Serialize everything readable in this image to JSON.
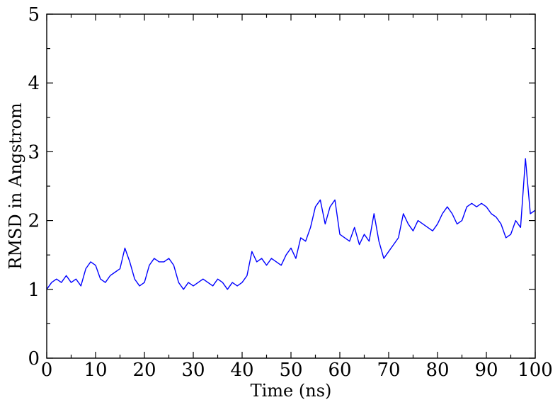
{
  "chart_data": {
    "type": "line",
    "title": "",
    "xlabel": "Time (ns)",
    "ylabel": "RMSD in Angstrom",
    "xlim": [
      0,
      100
    ],
    "ylim": [
      0,
      5
    ],
    "x_major_ticks": [
      0,
      10,
      20,
      30,
      40,
      50,
      60,
      70,
      80,
      90,
      100
    ],
    "x_tick_labels": [
      "0",
      "10",
      "20",
      "30",
      "40",
      "50",
      "60",
      "70",
      "80",
      "90",
      "100"
    ],
    "y_major_ticks": [
      0,
      1,
      2,
      3,
      4,
      5
    ],
    "y_tick_labels": [
      "0",
      "1",
      "2",
      "3",
      "4",
      "5"
    ],
    "grid": false,
    "legend": "none",
    "series": [
      {
        "color": "#0000ff",
        "x": [
          0,
          1,
          2,
          3,
          4,
          5,
          6,
          7,
          8,
          9,
          10,
          11,
          12,
          13,
          14,
          15,
          16,
          17,
          18,
          19,
          20,
          21,
          22,
          23,
          24,
          25,
          26,
          27,
          28,
          29,
          30,
          31,
          32,
          33,
          34,
          35,
          36,
          37,
          38,
          39,
          40,
          41,
          42,
          43,
          44,
          45,
          46,
          47,
          48,
          49,
          50,
          51,
          52,
          53,
          54,
          55,
          56,
          57,
          58,
          59,
          60,
          61,
          62,
          63,
          64,
          65,
          66,
          67,
          68,
          69,
          70,
          71,
          72,
          73,
          74,
          75,
          76,
          77,
          78,
          79,
          80,
          81,
          82,
          83,
          84,
          85,
          86,
          87,
          88,
          89,
          90,
          91,
          92,
          93,
          94,
          95,
          96,
          97,
          98,
          99,
          100
        ],
        "y": [
          1.0,
          1.1,
          1.15,
          1.1,
          1.2,
          1.1,
          1.15,
          1.05,
          1.3,
          1.4,
          1.35,
          1.15,
          1.1,
          1.2,
          1.25,
          1.3,
          1.6,
          1.4,
          1.15,
          1.05,
          1.1,
          1.35,
          1.45,
          1.4,
          1.4,
          1.45,
          1.35,
          1.1,
          1.0,
          1.1,
          1.05,
          1.1,
          1.15,
          1.1,
          1.05,
          1.15,
          1.1,
          1.0,
          1.1,
          1.05,
          1.1,
          1.2,
          1.55,
          1.4,
          1.45,
          1.35,
          1.45,
          1.4,
          1.35,
          1.5,
          1.6,
          1.45,
          1.75,
          1.7,
          1.9,
          2.2,
          2.3,
          1.95,
          2.2,
          2.3,
          1.8,
          1.75,
          1.7,
          1.9,
          1.65,
          1.8,
          1.7,
          2.1,
          1.7,
          1.45,
          1.55,
          1.65,
          1.75,
          2.1,
          1.95,
          1.85,
          2.0,
          1.95,
          1.9,
          1.85,
          1.95,
          2.1,
          2.2,
          2.1,
          1.95,
          2.0,
          2.2,
          2.25,
          2.2,
          2.25,
          2.2,
          2.1,
          2.05,
          1.95,
          1.75,
          1.8,
          2.0,
          1.9,
          2.9,
          2.1,
          2.15
        ]
      }
    ]
  }
}
